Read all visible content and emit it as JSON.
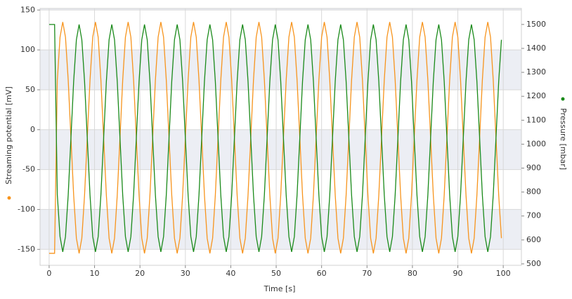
{
  "chart_data": {
    "type": "line",
    "xlabel": "Time [s]",
    "ylabel": "Streaming potential [mV]",
    "y2label": "Pressure [mbar]",
    "xlim": [
      -2,
      104
    ],
    "xticks": [
      0,
      10,
      20,
      30,
      40,
      50,
      60,
      70,
      80,
      90,
      100
    ],
    "ylim": [
      -170,
      152
    ],
    "yticks": [
      -150,
      -100,
      -50,
      0,
      50,
      100,
      150
    ],
    "y2lim": [
      494,
      1567
    ],
    "y2ticks": [
      500,
      600,
      700,
      800,
      900,
      1000,
      1100,
      1200,
      1300,
      1400,
      1500
    ],
    "grid": true,
    "x": [
      0,
      0.6,
      1.2,
      1.8,
      2.4,
      3,
      3.6,
      4.2,
      4.8,
      5.4,
      6,
      6.6,
      7.2,
      7.8,
      8.4,
      9,
      9.6,
      10.2,
      10.8,
      11.4,
      12,
      12.6,
      13.2,
      13.8,
      14.4,
      15,
      15.6,
      16.2,
      16.8,
      17.4,
      18,
      18.6,
      19.2,
      19.8,
      20.4,
      21,
      21.6,
      22.2,
      22.8,
      23.4,
      24,
      24.6,
      25.2,
      25.8,
      26.4,
      27,
      27.6,
      28.2,
      28.8,
      29.4,
      30,
      30.6,
      31.2,
      31.8,
      32.4,
      33,
      33.6,
      34.2,
      34.8,
      35.4,
      36,
      36.6,
      37.2,
      37.8,
      38.4,
      39,
      39.6,
      40.2,
      40.8,
      41.4,
      42,
      42.6,
      43.2,
      43.8,
      44.4,
      45,
      45.6,
      46.2,
      46.8,
      47.4,
      48,
      48.6,
      49.2,
      49.8,
      50.4,
      51,
      51.6,
      52.2,
      52.8,
      53.4,
      54,
      54.6,
      55.2,
      55.8,
      56.4,
      57,
      57.6,
      58.2,
      58.8,
      59.4,
      60,
      60.6,
      61.2,
      61.8,
      62.4,
      63,
      63.6,
      64.2,
      64.8,
      65.4,
      66,
      66.6,
      67.2,
      67.8,
      68.4,
      69,
      69.6,
      70.2,
      70.8,
      71.4,
      72,
      72.6,
      73.2,
      73.8,
      74.4,
      75,
      75.6,
      76.2,
      76.8,
      77.4,
      78,
      78.6,
      79.2,
      79.8,
      80.4,
      81,
      81.6,
      82.2,
      82.8,
      83.4,
      84,
      84.6,
      85.2,
      85.8,
      86.4,
      87,
      87.6,
      88.2,
      88.8,
      89.4,
      90,
      90.6,
      91.2,
      91.8,
      92.4,
      93,
      93.6,
      94.2,
      94.8,
      95.4,
      96,
      96.6,
      97.2,
      97.8,
      98.4,
      99,
      99.6
    ],
    "series": [
      {
        "color": "#f7941d",
        "axis": "y",
        "values": [
          -155,
          -155,
          -155,
          62,
          116,
          135,
          116,
          62,
          -10,
          -82,
          -136,
          -155,
          -136,
          -82,
          -10,
          62,
          116,
          135,
          116,
          62,
          -10,
          -82,
          -136,
          -155,
          -136,
          -82,
          -10,
          62,
          116,
          135,
          116,
          62,
          -10,
          -82,
          -136,
          -155,
          -136,
          -82,
          -10,
          62,
          116,
          135,
          116,
          62,
          -10,
          -82,
          -136,
          -155,
          -136,
          -82,
          -10,
          62,
          116,
          135,
          116,
          62,
          -10,
          -82,
          -136,
          -155,
          -136,
          -82,
          -10,
          62,
          116,
          135,
          116,
          62,
          -10,
          -82,
          -136,
          -155,
          -136,
          -82,
          -10,
          62,
          116,
          135,
          116,
          62,
          -10,
          -82,
          -136,
          -155,
          -136,
          -82,
          -10,
          62,
          116,
          135,
          116,
          62,
          -10,
          -82,
          -136,
          -155,
          -136,
          -82,
          -10,
          62,
          116,
          135,
          116,
          62,
          -10,
          -82,
          -136,
          -155,
          -136,
          -82,
          -10,
          62,
          116,
          135,
          116,
          62,
          -10,
          -82,
          -136,
          -155,
          -136,
          -82,
          -10,
          62,
          116,
          135,
          116,
          62,
          -10,
          -82,
          -136,
          -155,
          -136,
          -82,
          -10,
          62,
          116,
          135,
          116,
          62,
          -10,
          -82,
          -136,
          -155,
          -136,
          -82,
          -10,
          62,
          116,
          135,
          116,
          62,
          -10,
          -82,
          -136,
          -155,
          -136,
          -82,
          -10,
          62,
          116,
          135,
          116,
          62,
          -10,
          -82,
          -136
        ]
      },
      {
        "color": "#1a8a1a",
        "axis": "y2",
        "values": [
          1500,
          1500,
          1500,
          788,
          614,
          550,
          614,
          788,
          1025,
          1262,
          1436,
          1500,
          1436,
          1262,
          1025,
          788,
          614,
          550,
          614,
          788,
          1025,
          1262,
          1436,
          1500,
          1436,
          1262,
          1025,
          788,
          614,
          550,
          614,
          788,
          1025,
          1262,
          1436,
          1500,
          1436,
          1262,
          1025,
          788,
          614,
          550,
          614,
          788,
          1025,
          1262,
          1436,
          1500,
          1436,
          1262,
          1025,
          788,
          614,
          550,
          614,
          788,
          1025,
          1262,
          1436,
          1500,
          1436,
          1262,
          1025,
          788,
          614,
          550,
          614,
          788,
          1025,
          1262,
          1436,
          1500,
          1436,
          1262,
          1025,
          788,
          614,
          550,
          614,
          788,
          1025,
          1262,
          1436,
          1500,
          1436,
          1262,
          1025,
          788,
          614,
          550,
          614,
          788,
          1025,
          1262,
          1436,
          1500,
          1436,
          1262,
          1025,
          788,
          614,
          550,
          614,
          788,
          1025,
          1262,
          1436,
          1500,
          1436,
          1262,
          1025,
          788,
          614,
          550,
          614,
          788,
          1025,
          1262,
          1436,
          1500,
          1436,
          1262,
          1025,
          788,
          614,
          550,
          614,
          788,
          1025,
          1262,
          1436,
          1500,
          1436,
          1262,
          1025,
          788,
          614,
          550,
          614,
          788,
          1025,
          1262,
          1436,
          1500,
          1436,
          1262,
          1025,
          788,
          614,
          550,
          614,
          788,
          1025,
          1262,
          1436,
          1500,
          1436,
          1262,
          1025,
          788,
          614,
          550,
          614,
          788,
          1025,
          1262,
          1436
        ]
      }
    ]
  }
}
